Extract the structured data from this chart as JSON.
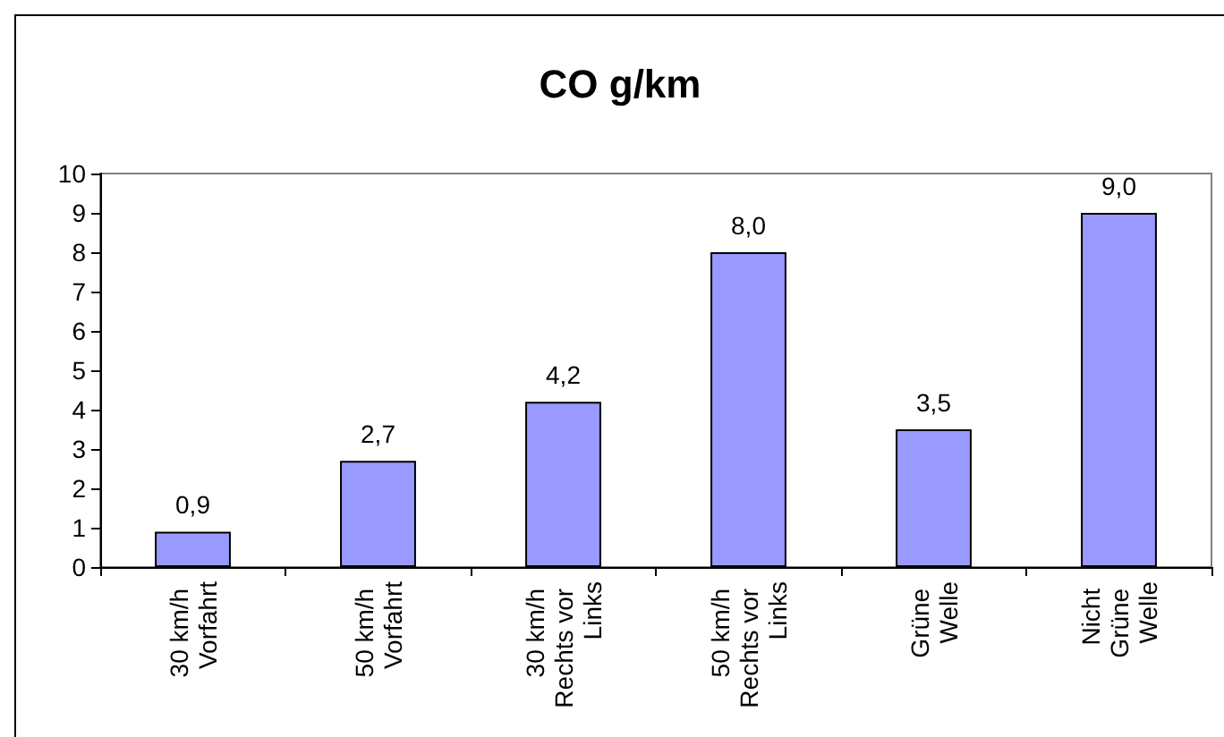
{
  "chart_data": {
    "type": "bar",
    "title": "CO g/km",
    "categories": [
      "30 km/h Vorfahrt",
      "50 km/h Vorfahrt",
      "30 km/h Rechts vor Links",
      "50 km/h Rechts vor Links",
      "Grüne Welle",
      "Nicht Grüne Welle"
    ],
    "values": [
      0.9,
      2.7,
      4.2,
      8.0,
      3.5,
      9.0
    ],
    "color": "#9999ff",
    "value_labels": [
      "0,9",
      "2,7",
      "4,2",
      "8,0",
      "3,5",
      "9,0"
    ],
    "ylim": [
      0,
      10
    ],
    "yticks": [
      0,
      1,
      2,
      3,
      4,
      5,
      6,
      7,
      8,
      9,
      10
    ],
    "grid": false
  }
}
